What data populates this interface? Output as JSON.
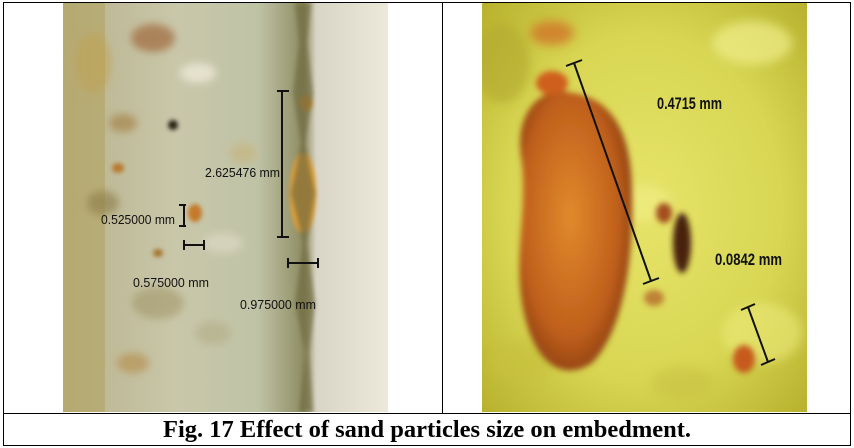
{
  "figure": {
    "caption": "Fig. 17 Effect of sand particles size on embedment.",
    "left_panel": {
      "measurements": [
        "2.625476 mm",
        "0.525000 mm",
        "0.575000 mm",
        "0.975000 mm"
      ]
    },
    "right_panel": {
      "measurements": [
        "0.4715 mm",
        "0.0842 mm"
      ]
    }
  }
}
